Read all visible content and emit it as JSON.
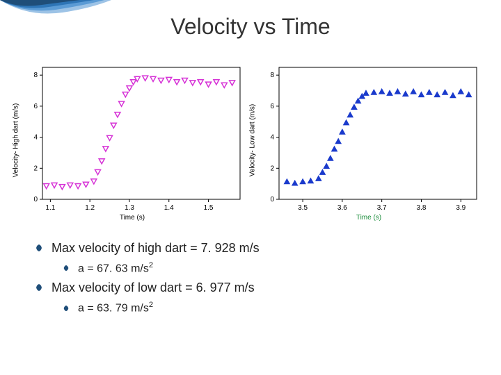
{
  "title": "Velocity vs Time",
  "decoration": {
    "colors": [
      "#1f4e79",
      "#2e75b6",
      "#5b9bd5",
      "#9dc3e6"
    ]
  },
  "chart_left": {
    "type": "scatter",
    "marker": "triangle-down",
    "marker_color": "#d633d6",
    "marker_fill": "#ffffff",
    "marker_size": 8,
    "ylabel": "Velocity- High dart (m/s)",
    "xlabel": "Time (s)",
    "xlabel_color": "#000000",
    "ylim": [
      0,
      8.5
    ],
    "yticks": [
      0,
      2,
      4,
      6,
      8
    ],
    "xlim": [
      1.08,
      1.58
    ],
    "xticks": [
      1.1,
      1.2,
      1.3,
      1.4,
      1.5
    ],
    "xtick_labels": [
      "1.1",
      "1.2",
      "1.3",
      "1.4",
      "1.5"
    ],
    "grid_color": "#e5e5e5",
    "axis_color": "#000000",
    "tick_fontsize": 10,
    "data": [
      {
        "x": 1.09,
        "y": 0.9
      },
      {
        "x": 1.11,
        "y": 0.95
      },
      {
        "x": 1.13,
        "y": 0.85
      },
      {
        "x": 1.15,
        "y": 0.95
      },
      {
        "x": 1.17,
        "y": 0.9
      },
      {
        "x": 1.19,
        "y": 1.0
      },
      {
        "x": 1.21,
        "y": 1.2
      },
      {
        "x": 1.22,
        "y": 1.8
      },
      {
        "x": 1.23,
        "y": 2.5
      },
      {
        "x": 1.24,
        "y": 3.3
      },
      {
        "x": 1.25,
        "y": 4.0
      },
      {
        "x": 1.26,
        "y": 4.8
      },
      {
        "x": 1.27,
        "y": 5.5
      },
      {
        "x": 1.28,
        "y": 6.2
      },
      {
        "x": 1.29,
        "y": 6.8
      },
      {
        "x": 1.3,
        "y": 7.2
      },
      {
        "x": 1.31,
        "y": 7.6
      },
      {
        "x": 1.32,
        "y": 7.8
      },
      {
        "x": 1.34,
        "y": 7.85
      },
      {
        "x": 1.36,
        "y": 7.8
      },
      {
        "x": 1.38,
        "y": 7.7
      },
      {
        "x": 1.4,
        "y": 7.75
      },
      {
        "x": 1.42,
        "y": 7.6
      },
      {
        "x": 1.44,
        "y": 7.7
      },
      {
        "x": 1.46,
        "y": 7.55
      },
      {
        "x": 1.48,
        "y": 7.6
      },
      {
        "x": 1.5,
        "y": 7.45
      },
      {
        "x": 1.52,
        "y": 7.6
      },
      {
        "x": 1.54,
        "y": 7.4
      },
      {
        "x": 1.56,
        "y": 7.55
      }
    ]
  },
  "chart_right": {
    "type": "scatter",
    "marker": "triangle-up",
    "marker_color": "#1a3acc",
    "marker_fill": "#1a3acc",
    "marker_size": 8,
    "ylabel": "Velocity- Low dart (m/s)",
    "xlabel": "Time (s)",
    "xlabel_color": "#1a8c3a",
    "ylim": [
      0,
      8.5
    ],
    "yticks": [
      0,
      2,
      4,
      6,
      8
    ],
    "xlim": [
      3.44,
      3.94
    ],
    "xticks": [
      3.5,
      3.6,
      3.7,
      3.8,
      3.9
    ],
    "xtick_labels": [
      "3.5",
      "3.6",
      "3.7",
      "3.8",
      "3.9"
    ],
    "grid_color": "#e5e5e5",
    "axis_color": "#000000",
    "tick_fontsize": 10,
    "data": [
      {
        "x": 3.46,
        "y": 1.1
      },
      {
        "x": 3.48,
        "y": 1.0
      },
      {
        "x": 3.5,
        "y": 1.1
      },
      {
        "x": 3.52,
        "y": 1.15
      },
      {
        "x": 3.54,
        "y": 1.3
      },
      {
        "x": 3.55,
        "y": 1.7
      },
      {
        "x": 3.56,
        "y": 2.1
      },
      {
        "x": 3.57,
        "y": 2.6
      },
      {
        "x": 3.58,
        "y": 3.2
      },
      {
        "x": 3.59,
        "y": 3.7
      },
      {
        "x": 3.6,
        "y": 4.3
      },
      {
        "x": 3.61,
        "y": 4.9
      },
      {
        "x": 3.62,
        "y": 5.4
      },
      {
        "x": 3.63,
        "y": 5.9
      },
      {
        "x": 3.64,
        "y": 6.3
      },
      {
        "x": 3.65,
        "y": 6.6
      },
      {
        "x": 3.66,
        "y": 6.8
      },
      {
        "x": 3.68,
        "y": 6.85
      },
      {
        "x": 3.7,
        "y": 6.9
      },
      {
        "x": 3.72,
        "y": 6.8
      },
      {
        "x": 3.74,
        "y": 6.9
      },
      {
        "x": 3.76,
        "y": 6.75
      },
      {
        "x": 3.78,
        "y": 6.9
      },
      {
        "x": 3.8,
        "y": 6.7
      },
      {
        "x": 3.82,
        "y": 6.85
      },
      {
        "x": 3.84,
        "y": 6.7
      },
      {
        "x": 3.86,
        "y": 6.85
      },
      {
        "x": 3.88,
        "y": 6.65
      },
      {
        "x": 3.9,
        "y": 6.9
      },
      {
        "x": 3.92,
        "y": 6.7
      }
    ]
  },
  "bullets": {
    "marker_color": "#1f4e79",
    "items": [
      {
        "level": 0,
        "text_pre": "Max velocity of high dart = 7. 928 m/s"
      },
      {
        "level": 1,
        "text_pre": "a = 67. 63 m/s",
        "sup": "2"
      },
      {
        "level": 0,
        "text_pre": "Max velocity of low dart = 6. 977 m/s"
      },
      {
        "level": 1,
        "text_pre": "a = 63. 79 m/s",
        "sup": "2"
      }
    ]
  }
}
